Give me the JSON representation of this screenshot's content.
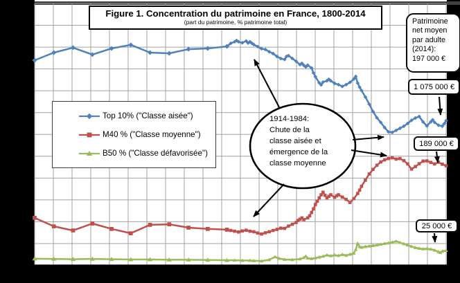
{
  "colors": {
    "background": "#000000",
    "plot_background": "#ffffff",
    "gridline": "#a0a0a0",
    "top_border_bar": "#404040",
    "axis_line": "#000000",
    "top10": "#4f81bd",
    "m40": "#c0504d",
    "b50": "#9bbb59"
  },
  "chart_data": {
    "type": "line",
    "title": "Figure 1. Concentration du patrimoine en France, 1800-2014",
    "subtitle": "(part du patrimoine, % patrimoine total)",
    "x_axis": {
      "min": 1800,
      "max": 2014,
      "gridline_step_years": 10,
      "tick_labels_visible": false
    },
    "y_axis": {
      "unit": "% du patrimoine total",
      "min": 0,
      "max": 102,
      "tick_labels_visible": false
    },
    "grid": true,
    "legend_position": "upper-left-inside",
    "series": [
      {
        "id": "top10",
        "name": "Top 10% (\"Classe aisée\")",
        "color": "#4f81bd",
        "marker": "diamond",
        "points": [
          [
            1800,
            80.3
          ],
          [
            1810,
            83.3
          ],
          [
            1820,
            85.2
          ],
          [
            1830,
            82.5
          ],
          [
            1840,
            84.9
          ],
          [
            1850,
            86.3
          ],
          [
            1860,
            83.3
          ],
          [
            1870,
            83.0
          ],
          [
            1880,
            84.6
          ],
          [
            1890,
            84.9
          ],
          [
            1900,
            85.7
          ],
          [
            1902,
            86.9
          ],
          [
            1904,
            87.5
          ],
          [
            1905,
            88.0
          ],
          [
            1906,
            87.5
          ],
          [
            1908,
            87.1
          ],
          [
            1910,
            87.8
          ],
          [
            1911,
            87.0
          ],
          [
            1912,
            87.5
          ],
          [
            1913,
            86.9
          ],
          [
            1914,
            86.4
          ],
          [
            1916,
            85.6
          ],
          [
            1918,
            84.8
          ],
          [
            1920,
            84.5
          ],
          [
            1922,
            83.6
          ],
          [
            1924,
            82.9
          ],
          [
            1926,
            81.8
          ],
          [
            1928,
            81.0
          ],
          [
            1930,
            80.6
          ],
          [
            1931,
            81.8
          ],
          [
            1932,
            82.1
          ],
          [
            1934,
            81.0
          ],
          [
            1936,
            79.9
          ],
          [
            1938,
            78.6
          ],
          [
            1939,
            79.1
          ],
          [
            1940,
            78.3
          ],
          [
            1941,
            77.7
          ],
          [
            1942,
            78.4
          ],
          [
            1944,
            77.3
          ],
          [
            1945,
            75.4
          ],
          [
            1946,
            73.9
          ],
          [
            1948,
            71.5
          ],
          [
            1949,
            70.7
          ],
          [
            1950,
            71.8
          ],
          [
            1952,
            72.3
          ],
          [
            1953,
            72.9
          ],
          [
            1954,
            72.3
          ],
          [
            1956,
            71.3
          ],
          [
            1958,
            70.8
          ],
          [
            1960,
            70.1
          ],
          [
            1962,
            70.8
          ],
          [
            1964,
            71.7
          ],
          [
            1966,
            73.0
          ],
          [
            1967,
            74.0
          ],
          [
            1968,
            71.4
          ],
          [
            1969,
            69.8
          ],
          [
            1970,
            68.5
          ],
          [
            1972,
            66.0
          ],
          [
            1974,
            63.2
          ],
          [
            1976,
            60.3
          ],
          [
            1978,
            57.9
          ],
          [
            1980,
            56.1
          ],
          [
            1982,
            54.1
          ],
          [
            1984,
            52.4
          ],
          [
            1986,
            52.2
          ],
          [
            1988,
            53.0
          ],
          [
            1990,
            53.8
          ],
          [
            1992,
            54.6
          ],
          [
            1994,
            55.7
          ],
          [
            1996,
            56.9
          ],
          [
            1998,
            57.8
          ],
          [
            2000,
            58.4
          ],
          [
            2002,
            56.3
          ],
          [
            2004,
            54.7
          ],
          [
            2006,
            56.3
          ],
          [
            2007,
            57.1
          ],
          [
            2008,
            56.1
          ],
          [
            2010,
            55.0
          ],
          [
            2012,
            54.6
          ],
          [
            2013,
            55.6
          ],
          [
            2014,
            56.8
          ]
        ]
      },
      {
        "id": "m40",
        "name": "M40 % (\"Classe moyenne\")",
        "color": "#c0504d",
        "marker": "square",
        "points": [
          [
            1800,
            18.9
          ],
          [
            1810,
            15.6
          ],
          [
            1820,
            14.0
          ],
          [
            1830,
            16.7
          ],
          [
            1840,
            14.6
          ],
          [
            1850,
            12.9
          ],
          [
            1860,
            16.2
          ],
          [
            1870,
            16.4
          ],
          [
            1880,
            15.1
          ],
          [
            1890,
            14.6
          ],
          [
            1900,
            14.3
          ],
          [
            1902,
            14.0
          ],
          [
            1904,
            13.7
          ],
          [
            1906,
            13.4
          ],
          [
            1908,
            13.8
          ],
          [
            1910,
            14.1
          ],
          [
            1912,
            13.7
          ],
          [
            1914,
            13.5
          ],
          [
            1916,
            13.0
          ],
          [
            1918,
            12.6
          ],
          [
            1920,
            13.1
          ],
          [
            1922,
            13.5
          ],
          [
            1924,
            14.0
          ],
          [
            1926,
            14.4
          ],
          [
            1928,
            14.9
          ],
          [
            1930,
            14.8
          ],
          [
            1932,
            15.7
          ],
          [
            1934,
            16.4
          ],
          [
            1936,
            17.1
          ],
          [
            1937,
            17.9
          ],
          [
            1938,
            18.4
          ],
          [
            1939,
            18.9
          ],
          [
            1940,
            18.2
          ],
          [
            1942,
            18.9
          ],
          [
            1943,
            19.7
          ],
          [
            1944,
            21.0
          ],
          [
            1945,
            22.4
          ],
          [
            1946,
            24.1
          ],
          [
            1947,
            25.4
          ],
          [
            1948,
            26.7
          ],
          [
            1949,
            27.9
          ],
          [
            1950,
            28.9
          ],
          [
            1951,
            27.7
          ],
          [
            1952,
            26.7
          ],
          [
            1953,
            27.3
          ],
          [
            1954,
            27.9
          ],
          [
            1956,
            26.9
          ],
          [
            1957,
            27.5
          ],
          [
            1958,
            27.9
          ],
          [
            1960,
            27.0
          ],
          [
            1962,
            26.1
          ],
          [
            1964,
            24.9
          ],
          [
            1966,
            26.4
          ],
          [
            1968,
            28.4
          ],
          [
            1969,
            29.7
          ],
          [
            1970,
            31.2
          ],
          [
            1972,
            33.6
          ],
          [
            1974,
            36.0
          ],
          [
            1976,
            37.8
          ],
          [
            1978,
            39.4
          ],
          [
            1980,
            40.7
          ],
          [
            1982,
            41.5
          ],
          [
            1984,
            42.0
          ],
          [
            1986,
            42.3
          ],
          [
            1988,
            41.8
          ],
          [
            1990,
            42.0
          ],
          [
            1992,
            41.2
          ],
          [
            1994,
            39.9
          ],
          [
            1996,
            37.9
          ],
          [
            1998,
            38.9
          ],
          [
            2000,
            40.0
          ],
          [
            2002,
            41.0
          ],
          [
            2004,
            41.1
          ],
          [
            2006,
            40.5
          ],
          [
            2008,
            39.9
          ],
          [
            2010,
            40.6
          ],
          [
            2012,
            39.8
          ],
          [
            2014,
            39.2
          ]
        ]
      },
      {
        "id": "b50",
        "name": "B50 % (\"Classe défavorisée\")",
        "color": "#9bbb59",
        "marker": "triangle",
        "points": [
          [
            1800,
            3.0
          ],
          [
            1810,
            2.9
          ],
          [
            1820,
            2.8
          ],
          [
            1830,
            2.9
          ],
          [
            1840,
            2.8
          ],
          [
            1850,
            2.7
          ],
          [
            1860,
            2.7
          ],
          [
            1870,
            2.6
          ],
          [
            1880,
            2.6
          ],
          [
            1890,
            2.5
          ],
          [
            1900,
            2.4
          ],
          [
            1904,
            2.4
          ],
          [
            1908,
            2.3
          ],
          [
            1912,
            2.3
          ],
          [
            1914,
            2.2
          ],
          [
            1918,
            2.1
          ],
          [
            1922,
            2.6
          ],
          [
            1925,
            3.7
          ],
          [
            1927,
            3.1
          ],
          [
            1930,
            2.7
          ],
          [
            1934,
            2.6
          ],
          [
            1938,
            2.9
          ],
          [
            1940,
            3.4
          ],
          [
            1941,
            4.0
          ],
          [
            1942,
            3.2
          ],
          [
            1944,
            3.0
          ],
          [
            1946,
            3.3
          ],
          [
            1948,
            3.6
          ],
          [
            1950,
            3.9
          ],
          [
            1952,
            4.4
          ],
          [
            1954,
            4.1
          ],
          [
            1956,
            4.4
          ],
          [
            1958,
            4.2
          ],
          [
            1960,
            4.6
          ],
          [
            1962,
            4.3
          ],
          [
            1964,
            4.7
          ],
          [
            1966,
            5.1
          ],
          [
            1967,
            6.6
          ],
          [
            1968,
            9.0
          ],
          [
            1969,
            7.7
          ],
          [
            1970,
            7.4
          ],
          [
            1972,
            7.7
          ],
          [
            1974,
            7.9
          ],
          [
            1976,
            8.1
          ],
          [
            1978,
            8.3
          ],
          [
            1980,
            8.6
          ],
          [
            1982,
            8.9
          ],
          [
            1984,
            9.1
          ],
          [
            1986,
            9.4
          ],
          [
            1988,
            9.8
          ],
          [
            1990,
            9.3
          ],
          [
            1992,
            8.8
          ],
          [
            1994,
            8.3
          ],
          [
            1996,
            7.8
          ],
          [
            1998,
            7.3
          ],
          [
            2000,
            7.0
          ],
          [
            2002,
            6.8
          ],
          [
            2004,
            6.9
          ],
          [
            2006,
            6.7
          ],
          [
            2008,
            6.3
          ],
          [
            2010,
            5.7
          ],
          [
            2011,
            5.4
          ],
          [
            2012,
            5.9
          ],
          [
            2014,
            6.2
          ]
        ]
      }
    ],
    "annotations": {
      "ellipse_note": "1914-1984:\nChute de la\nclasse aisée et\némergence de la\nclasse moyenne",
      "patrimoine_note": "Patrimoine\nnet moyen\npar adulte\n(2014):\n197 000 €",
      "callout_top10": "1 075 000 €",
      "callout_m40": "189 000 €",
      "callout_b50": "25 000 €"
    }
  }
}
